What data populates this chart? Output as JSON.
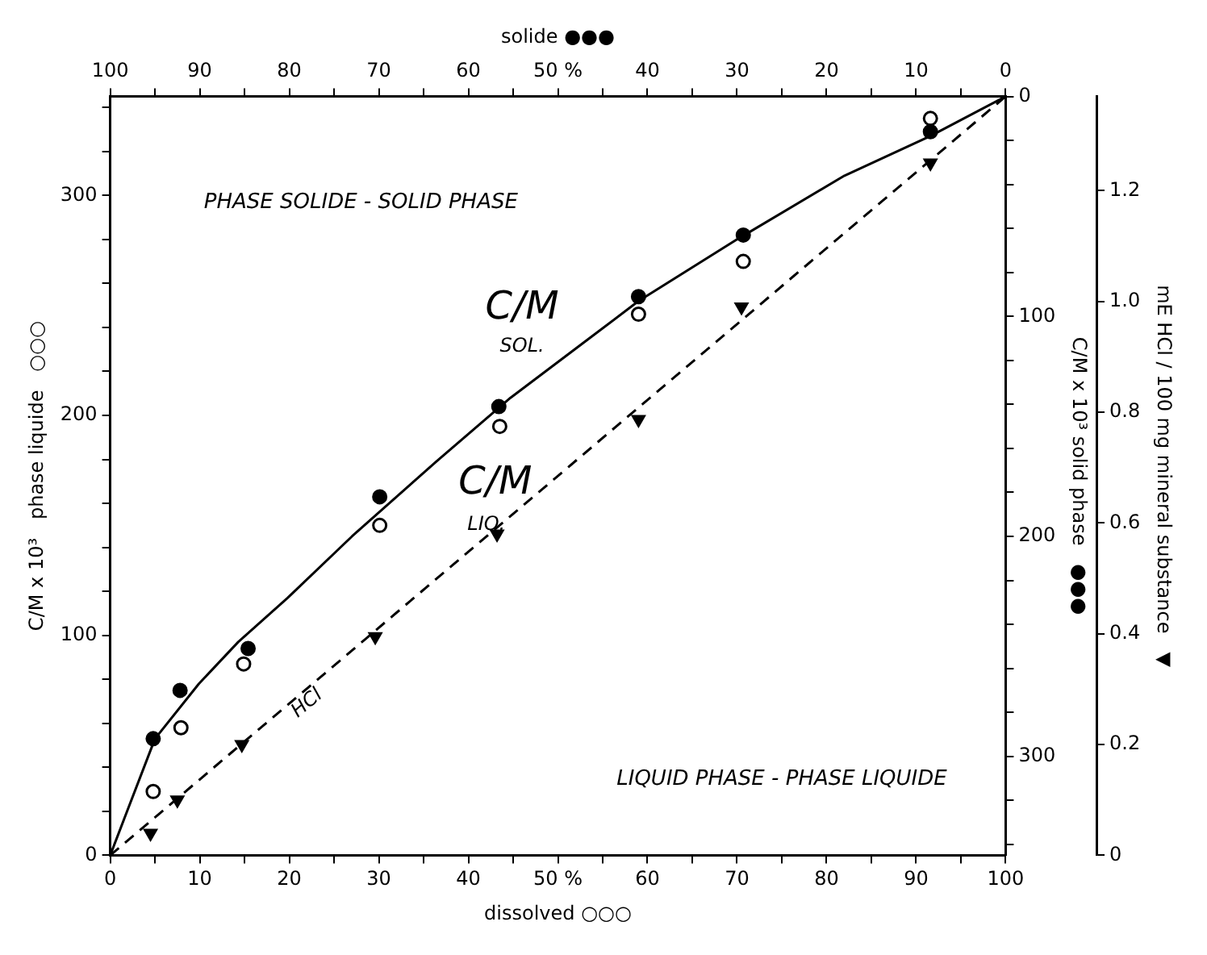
{
  "chart_data": {
    "type": "scatter",
    "xlabel": "dissolved ○○○",
    "x2label": "solide ●●●",
    "ylabel": "C/M x 10³   phase liquide   ○○○",
    "y2label": "C/M x 10³ solid phase   ●●●",
    "y3label": "mE HCl / 100 mg mineral substance   ▼",
    "xlim": [
      0,
      100
    ],
    "xticks": [
      0,
      {
        "value": 5,
        "label": null
      },
      10,
      {
        "value": 15,
        "label": null
      },
      20,
      {
        "value": 25,
        "label": null
      },
      30,
      {
        "value": 35,
        "label": null
      },
      40,
      {
        "value": 45,
        "label": null
      },
      {
        "value": 50,
        "label": "50 %"
      },
      {
        "value": 55,
        "label": null
      },
      60,
      {
        "value": 65,
        "label": null
      },
      70,
      {
        "value": 75,
        "label": null
      },
      80,
      {
        "value": 85,
        "label": null
      },
      90,
      {
        "value": 95,
        "label": null
      },
      100
    ],
    "x2lim": [
      100,
      0
    ],
    "x2ticks": [
      0,
      {
        "value": 5,
        "label": null
      },
      10,
      {
        "value": 15,
        "label": null
      },
      20,
      {
        "value": 25,
        "label": null
      },
      30,
      {
        "value": 35,
        "label": null
      },
      40,
      {
        "value": 45,
        "label": null
      },
      {
        "value": 50,
        "label": "50 %"
      },
      {
        "value": 55,
        "label": null
      },
      60,
      {
        "value": 65,
        "label": null
      },
      70,
      {
        "value": 75,
        "label": null
      },
      80,
      {
        "value": 85,
        "label": null
      },
      90,
      {
        "value": 95,
        "label": null
      },
      100
    ],
    "ylim": [
      0,
      345
    ],
    "yticks": [
      0,
      {
        "value": 20,
        "label": null
      },
      {
        "value": 40,
        "label": null
      },
      {
        "value": 60,
        "label": null
      },
      {
        "value": 80,
        "label": null
      },
      100,
      {
        "value": 120,
        "label": null
      },
      {
        "value": 140,
        "label": null
      },
      {
        "value": 160,
        "label": null
      },
      {
        "value": 180,
        "label": null
      },
      200,
      {
        "value": 220,
        "label": null
      },
      {
        "value": 240,
        "label": null
      },
      {
        "value": 260,
        "label": null
      },
      {
        "value": 280,
        "label": null
      },
      300,
      {
        "value": 320,
        "label": null
      },
      {
        "value": 340,
        "label": null
      }
    ],
    "y2lim": [
      345,
      0
    ],
    "y2ticks": [
      0,
      {
        "value": 20,
        "label": null
      },
      {
        "value": 40,
        "label": null
      },
      {
        "value": 60,
        "label": null
      },
      {
        "value": 80,
        "label": null
      },
      100,
      {
        "value": 120,
        "label": null
      },
      {
        "value": 140,
        "label": null
      },
      {
        "value": 160,
        "label": null
      },
      {
        "value": 180,
        "label": null
      },
      200,
      {
        "value": 220,
        "label": null
      },
      {
        "value": 240,
        "label": null
      },
      {
        "value": 260,
        "label": null
      },
      {
        "value": 280,
        "label": null
      },
      300,
      {
        "value": 320,
        "label": null
      },
      {
        "value": 340,
        "label": null
      }
    ],
    "y3lim": [
      0,
      1.37
    ],
    "y3ticks": [
      0,
      0.2,
      0.4,
      0.6,
      0.8,
      {
        "value": 1,
        "label": "1.0"
      },
      1.2
    ],
    "grid": false,
    "legend": false,
    "annotations": [
      "PHASE SOLIDE - SOLID PHASE",
      "LIQUID PHASE - PHASE LIQUIDE",
      "C/M",
      "SOL.",
      "C/M",
      "LIQ.",
      "HCl"
    ],
    "series": [
      {
        "type": "line",
        "color": "#000000",
        "marker": "none",
        "line_style": "solid",
        "x": [
          0,
          1.6,
          5,
          9.9,
          14.3,
          19.8,
          27,
          36.4,
          44.7,
          53.5,
          59,
          70,
          82,
          91.6,
          100
        ],
        "values": [
          0,
          17,
          53,
          78,
          97,
          117,
          145,
          179,
          208,
          235,
          252,
          280,
          309,
          327,
          345
        ]
      },
      {
        "type": "line",
        "color": "#000000",
        "marker": "none",
        "line_style": "dashed",
        "axis": "y3",
        "x": [
          0,
          100
        ],
        "values": [
          0,
          1.37
        ]
      },
      {
        "color": "#000000",
        "marker": "circle",
        "x": [
          4.8,
          7.9,
          14.9,
          30.1,
          43.5,
          59,
          70.7,
          91.6
        ],
        "values": [
          29,
          58,
          87,
          150,
          195,
          246,
          270,
          335
        ]
      },
      {
        "color": "#000000",
        "marker": "circle",
        "axis": "y2",
        "x": [
          4.8,
          7.8,
          15.4,
          30.1,
          43.4,
          59,
          70.7,
          91.6
        ],
        "values": [
          292,
          270,
          251,
          182,
          141,
          91,
          63,
          16
        ]
      },
      {
        "color": "#000000",
        "marker": "triangle",
        "axis": "y3",
        "x": [
          4.5,
          7.5,
          14.7,
          29.6,
          43.2,
          59,
          70.5,
          91.6
        ],
        "values": [
          0.04,
          0.1,
          0.2,
          0.395,
          0.58,
          0.787,
          0.99,
          1.25
        ]
      }
    ]
  }
}
